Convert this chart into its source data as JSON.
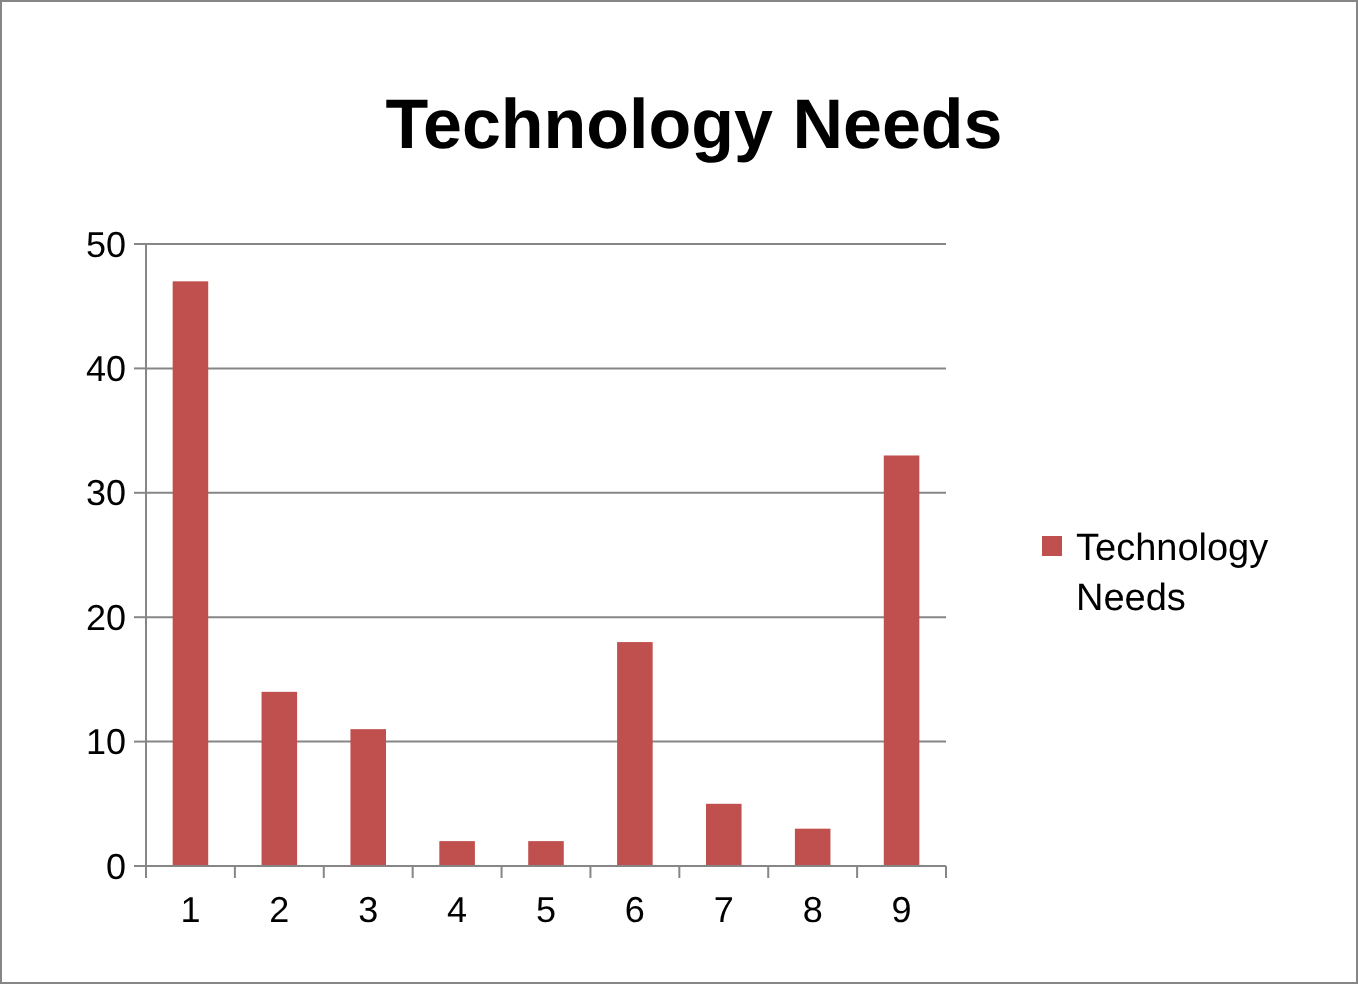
{
  "chart_data": {
    "type": "bar",
    "title": "Technology Needs",
    "categories": [
      "1",
      "2",
      "3",
      "4",
      "5",
      "6",
      "7",
      "8",
      "9"
    ],
    "series": [
      {
        "name": "Technology Needs",
        "color": "#c0504d",
        "values": [
          47,
          14,
          11,
          2,
          2,
          18,
          5,
          3,
          33
        ]
      }
    ],
    "ylim": [
      0,
      50
    ],
    "yticks": [
      0,
      10,
      20,
      30,
      40,
      50
    ],
    "grid": "y",
    "legend": "right"
  }
}
